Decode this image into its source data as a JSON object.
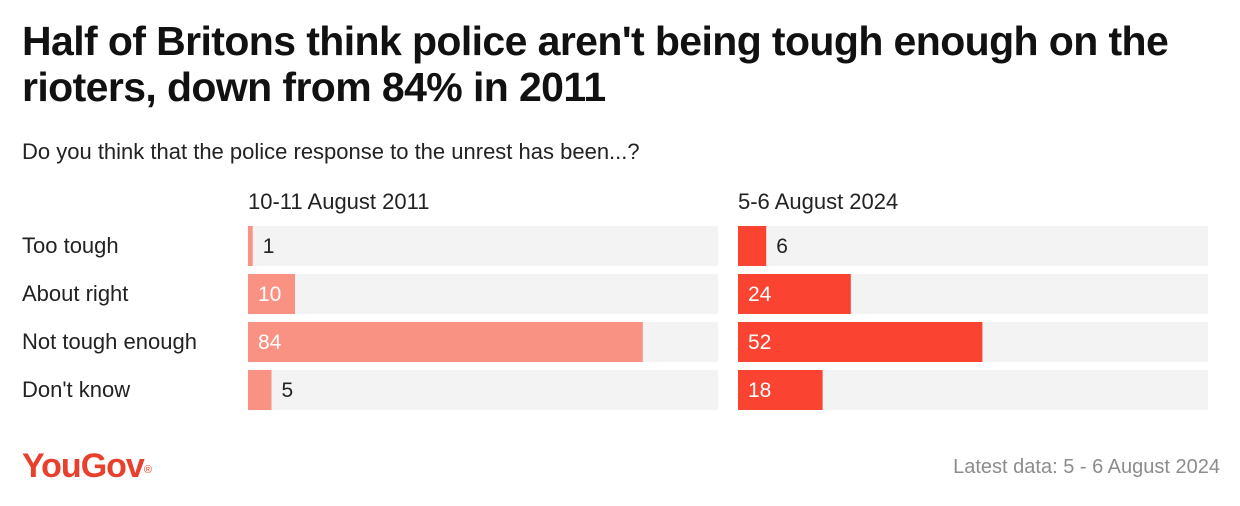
{
  "title": "Half of Britons think police aren't being tough enough on the rioters, down from 84% in 2011",
  "subtitle": "Do you think that the police response to the unrest has been...?",
  "colors": {
    "series_2011": "#f99283",
    "series_2024": "#fa4331",
    "track": "#f3f3f3",
    "logo": "#e8402d"
  },
  "chart_data": {
    "type": "bar",
    "orientation": "horizontal",
    "categories": [
      "Too tough",
      "About right",
      "Not tough enough",
      "Don't know"
    ],
    "xlim": [
      0,
      100
    ],
    "series": [
      {
        "name": "10-11 August 2011",
        "values": [
          1,
          10,
          84,
          5
        ]
      },
      {
        "name": "5-6 August 2024",
        "values": [
          6,
          24,
          52,
          18
        ]
      }
    ]
  },
  "logo": {
    "text": "YouGov",
    "mark": "®"
  },
  "footer": "Latest data: 5 - 6 August 2024"
}
